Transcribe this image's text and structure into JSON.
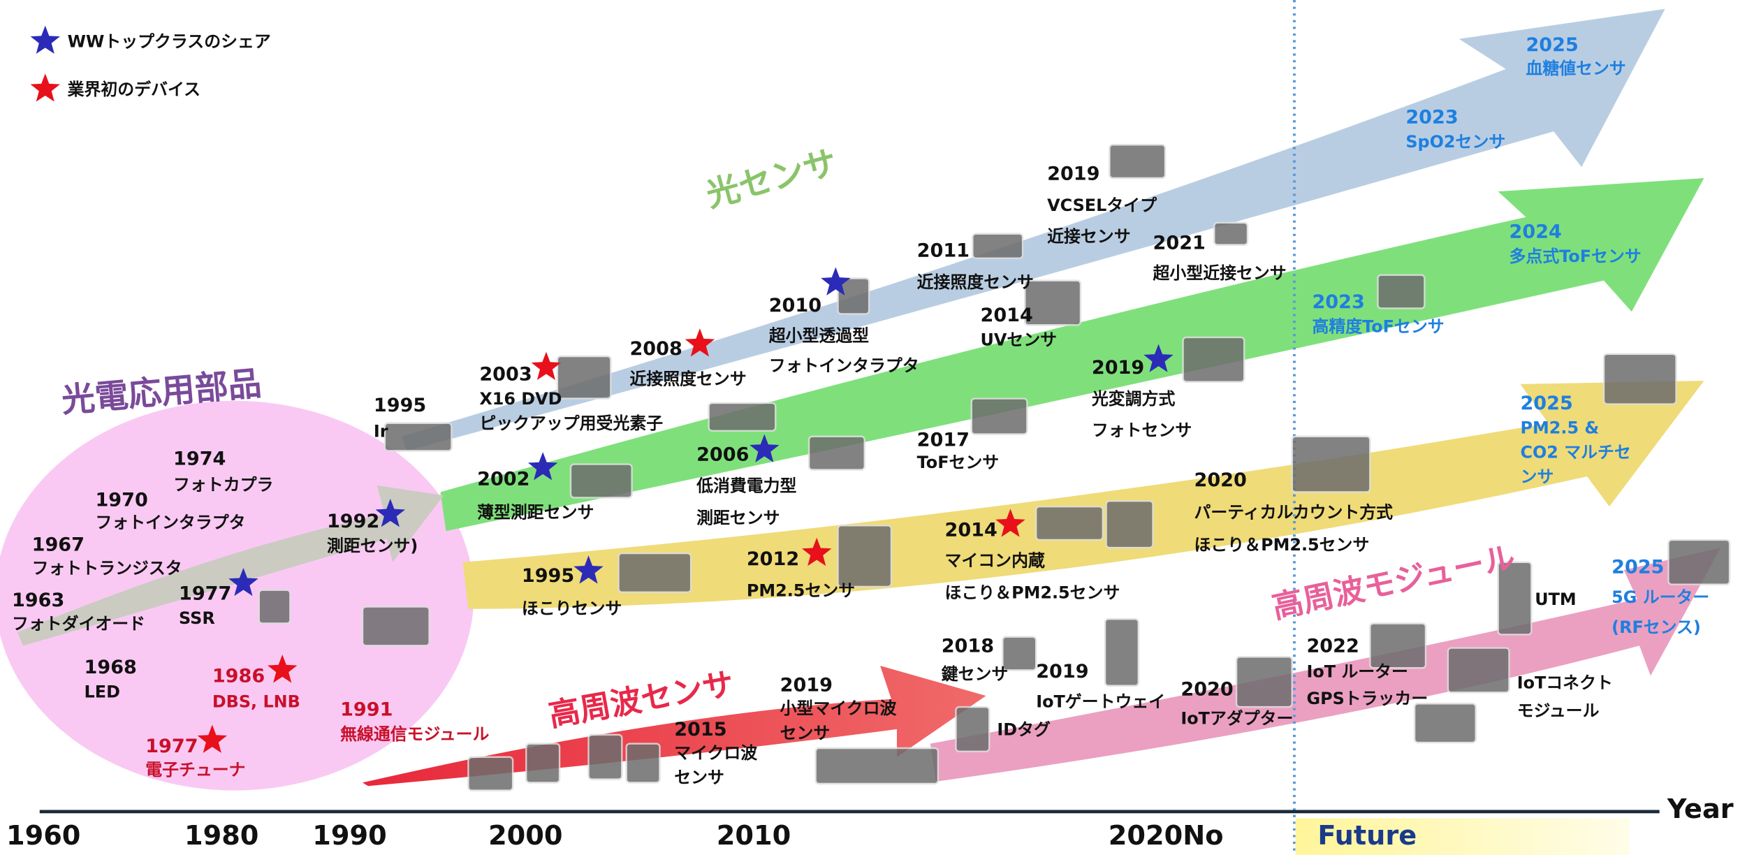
{
  "legend": [
    {
      "label": "WWトップクラスのシェア"
    },
    {
      "label": "業界初のデバイス"
    }
  ],
  "categories": [
    "光電応用部品",
    "光センサ",
    "高周波センサ",
    "高周波モジュール"
  ],
  "items": [
    {
      "year": "1974",
      "lines": [
        "フォトカプラ"
      ]
    },
    {
      "year": "1970",
      "lines": [
        "フォトインタラプタ"
      ]
    },
    {
      "year": "1967",
      "lines": [
        "フォトトランジスタ"
      ]
    },
    {
      "year": "1963",
      "lines": [
        "フォトダイオード"
      ]
    },
    {
      "year": "1977",
      "lines": [
        "SSR"
      ]
    },
    {
      "year": "1968",
      "lines": [
        "LED"
      ]
    },
    {
      "year": "1986",
      "lines": [
        "DBS, LNB"
      ]
    },
    {
      "year": "1977",
      "lines": [
        "電子チューナ"
      ]
    },
    {
      "year": "1991",
      "lines": [
        "無線通信モジュール"
      ]
    },
    {
      "year": "1992",
      "lines": [
        "測距センサ)"
      ]
    },
    {
      "year": "1995",
      "lines": [
        "Ir"
      ]
    },
    {
      "year": "2003",
      "lines": [
        "X16 DVD",
        "ピックアップ用受光素子"
      ]
    },
    {
      "year": "2008",
      "lines": [
        "近接照度センサ"
      ]
    },
    {
      "year": "2010",
      "lines": [
        "超小型透過型",
        "フォトインタラプタ"
      ]
    },
    {
      "year": "2011",
      "lines": [
        "近接照度センサ"
      ]
    },
    {
      "year": "2019",
      "lines": [
        "VCSELタイプ",
        "近接センサ"
      ]
    },
    {
      "year": "2021",
      "lines": [
        "超小型近接センサ"
      ]
    },
    {
      "year": "2014",
      "lines": [
        "UVセンサ"
      ]
    },
    {
      "year": "2023",
      "lines": [
        "SpO2センサ"
      ]
    },
    {
      "year": "2025",
      "lines": [
        "血糖値センサ"
      ]
    },
    {
      "year": "2002",
      "lines": [
        "薄型測距センサ"
      ]
    },
    {
      "year": "2006",
      "lines": [
        "低消費電力型",
        "測距センサ"
      ]
    },
    {
      "year": "2017",
      "lines": [
        "ToFセンサ"
      ]
    },
    {
      "year": "2019",
      "lines": [
        "光変調方式",
        "フォトセンサ"
      ]
    },
    {
      "year": "2023",
      "lines": [
        "高精度ToFセンサ"
      ]
    },
    {
      "year": "2024",
      "lines": [
        "多点式ToFセンサ"
      ]
    },
    {
      "year": "1995",
      "lines": [
        "ほこりセンサ"
      ]
    },
    {
      "year": "2012",
      "lines": [
        "PM2.5センサ"
      ]
    },
    {
      "year": "2014",
      "lines": [
        "マイコン内蔵",
        "ほこり＆PM2.5センサ"
      ]
    },
    {
      "year": "2020",
      "lines": [
        "パーティカルカウント方式",
        "ほこり＆PM2.5センサ"
      ]
    },
    {
      "year": "2025",
      "lines": [
        "PM2.5 &",
        "CO2 マルチセ",
        "ンサ"
      ]
    },
    {
      "year": "2015",
      "lines": [
        "マイクロ波",
        "センサ"
      ]
    },
    {
      "year": "2019",
      "lines": [
        "小型マイクロ波",
        "センサ"
      ]
    },
    {
      "year": "2018",
      "lines": [
        "鍵センサ"
      ]
    },
    {
      "year": "2019",
      "lines": [
        "IoTゲートウェイ"
      ]
    },
    {
      "lines": [
        "IDタグ"
      ]
    },
    {
      "year": "2020",
      "lines": [
        "IoTアダプター"
      ]
    },
    {
      "year": "2022",
      "lines": [
        "IoT ルーター",
        "GPSトラッカー"
      ]
    },
    {
      "lines": [
        "UTM"
      ]
    },
    {
      "lines": [
        "IoTコネクト",
        "モジュール"
      ]
    },
    {
      "year": "2025",
      "lines": [
        "5G ルーター",
        "(RFセンス)"
      ]
    }
  ],
  "timeline": {
    "labels": [
      "1960",
      "1980",
      "1990",
      "2000",
      "2010",
      "2020No"
    ],
    "future": "Future",
    "axis_label": "Year"
  }
}
